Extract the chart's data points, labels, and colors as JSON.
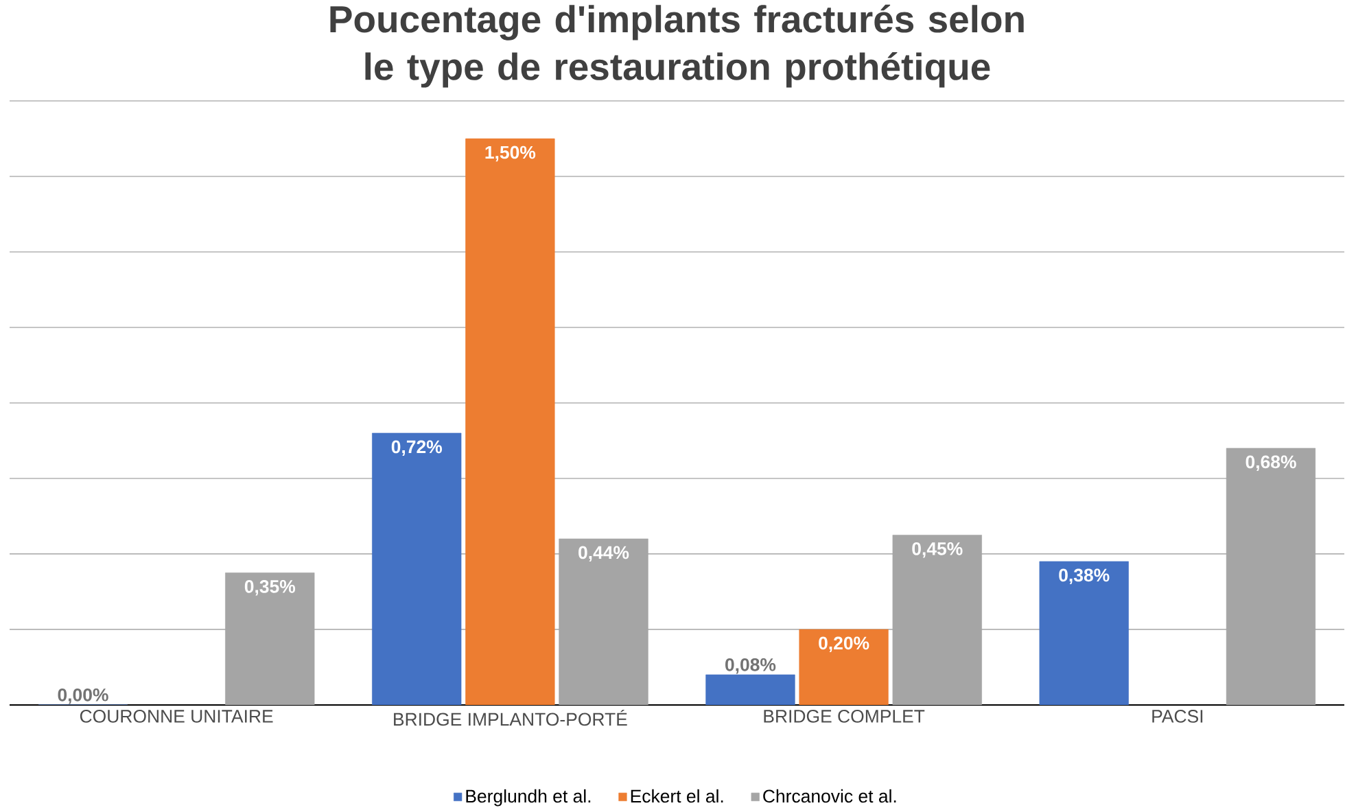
{
  "chart_data": {
    "type": "bar",
    "title": "Poucentage d'implants fracturés selon le type de restauration prothétique",
    "categories": [
      "COURONNE UNITAIRE",
      "BRIDGE IMPLANTO-PORTÉ",
      "BRIDGE COMPLET",
      "PACSI"
    ],
    "series": [
      {
        "name": "Berglundh et al.",
        "color": "#4472c4",
        "values": [
          0.0,
          0.72,
          0.08,
          0.38
        ],
        "value_labels": [
          "0,00%",
          "0,72%",
          "0,08%",
          "0,38%"
        ]
      },
      {
        "name": "Eckert el al.",
        "color": "#ed7d31",
        "values": [
          null,
          1.5,
          0.2,
          null
        ],
        "value_labels": [
          null,
          "1,50%",
          "0,20%",
          null
        ]
      },
      {
        "name": "Chrcanovic et al.",
        "color": "#a5a5a5",
        "values": [
          0.35,
          0.44,
          0.45,
          0.68
        ],
        "value_labels": [
          "0,35%",
          "0,44%",
          "0,45%",
          "0,68%"
        ]
      }
    ],
    "ylim": [
      0,
      1.6
    ],
    "yticks": [
      {
        "value": 0,
        "label": null
      },
      {
        "value": 0.2,
        "label": null
      },
      {
        "value": 0.4,
        "label": null
      },
      {
        "value": 0.6,
        "label": null
      },
      {
        "value": 0.8,
        "label": null
      },
      {
        "value": 1.0,
        "label": null
      },
      {
        "value": 1.2,
        "label": null
      },
      {
        "value": 1.4,
        "label": null
      },
      {
        "value": 1.6,
        "label": null
      }
    ],
    "grid": "y",
    "legend": "bottom",
    "tick_labels": "x"
  }
}
